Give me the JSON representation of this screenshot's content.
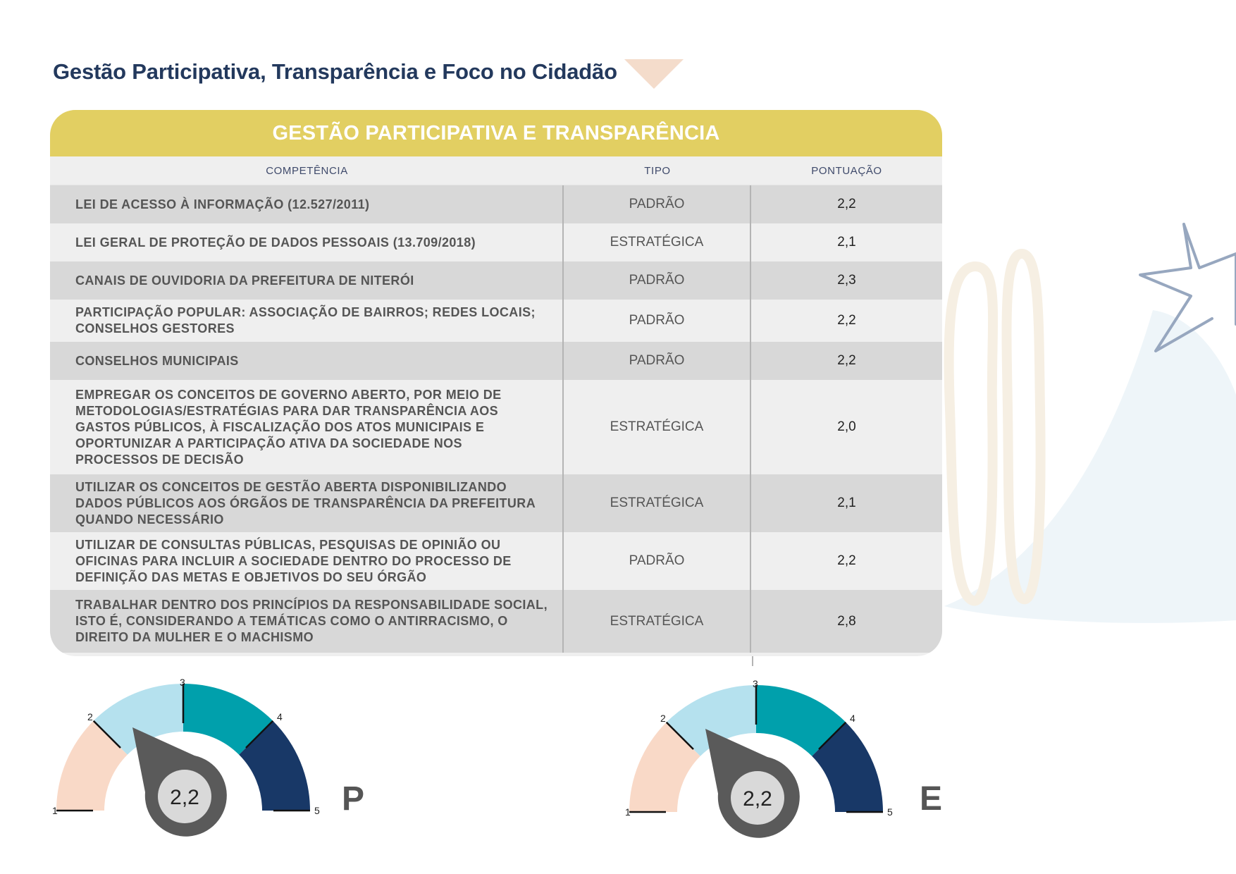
{
  "page_title": "Gestão Participativa, Transparência e Foco no Cidadão",
  "table": {
    "title": "GESTÃO PARTICIPATIVA E TRANSPARÊNCIA",
    "columns": {
      "competencia": "COMPETÊNCIA",
      "tipo": "TIPO",
      "pontuacao": "PONTUAÇÃO"
    },
    "rows": [
      {
        "competencia": "LEI DE ACESSO À INFORMAÇÃO (12.527/2011)",
        "tipo": "PADRÃO",
        "pontuacao": "2,2"
      },
      {
        "competencia": "LEI GERAL DE PROTEÇÃO DE DADOS PESSOAIS (13.709/2018)",
        "tipo": "ESTRATÉGICA",
        "pontuacao": "2,1"
      },
      {
        "competencia": "CANAIS DE OUVIDORIA DA PREFEITURA DE NITERÓI",
        "tipo": "PADRÃO",
        "pontuacao": "2,3"
      },
      {
        "competencia": "PARTICIPAÇÃO POPULAR: ASSOCIAÇÃO DE BAIRROS; REDES LOCAIS; CONSELHOS GESTORES",
        "tipo": "PADRÃO",
        "pontuacao": "2,2"
      },
      {
        "competencia": "CONSELHOS MUNICIPAIS",
        "tipo": "PADRÃO",
        "pontuacao": "2,2"
      },
      {
        "competencia": "EMPREGAR OS CONCEITOS DE GOVERNO ABERTO, POR MEIO DE METODOLOGIAS/ESTRATÉGIAS PARA DAR TRANSPARÊNCIA AOS GASTOS PÚBLICOS, À FISCALIZAÇÃO DOS ATOS MUNICIPAIS E OPORTUNIZAR A PARTICIPAÇÃO ATIVA DA SOCIEDADE NOS PROCESSOS DE DECISÃO",
        "tipo": "ESTRATÉGICA",
        "pontuacao": "2,0"
      },
      {
        "competencia": "UTILIZAR OS CONCEITOS DE GESTÃO ABERTA DISPONIBILIZANDO DADOS PÚBLICOS AOS ÓRGÃOS DE TRANSPARÊNCIA DA PREFEITURA QUANDO NECESSÁRIO",
        "tipo": "ESTRATÉGICA",
        "pontuacao": "2,1"
      },
      {
        "competencia": "UTILIZAR DE CONSULTAS PÚBLICAS, PESQUISAS DE OPINIÃO OU OFICINAS PARA INCLUIR A SOCIEDADE DENTRO DO PROCESSO DE DEFINIÇÃO DAS METAS E OBJETIVOS DO SEU ÓRGÃO",
        "tipo": "PADRÃO",
        "pontuacao": "2,2"
      },
      {
        "competencia": "TRABALHAR DENTRO DOS PRINCÍPIOS DA RESPONSABILIDADE SOCIAL, ISTO É, CONSIDERANDO A TEMÁTICAS COMO O ANTIRRACISMO, O DIREITO DA MULHER E O MACHISMO",
        "tipo": "ESTRATÉGICA",
        "pontuacao": "2,8"
      }
    ]
  },
  "gauges": [
    {
      "letter": "P",
      "value": 2.2,
      "value_label": "2,2",
      "ticks": [
        "1",
        "2",
        "3",
        "4",
        "5"
      ],
      "min": 1,
      "max": 5
    },
    {
      "letter": "E",
      "value": 2.2,
      "value_label": "2,2",
      "ticks": [
        "1",
        "2",
        "3",
        "4",
        "5"
      ],
      "min": 1,
      "max": 5
    }
  ],
  "colors": {
    "title": "#23395d",
    "header_band": "#e2cf62",
    "accent_triangle": "#f4dccb",
    "seg1": "#f9d9c7",
    "seg2": "#b5e1ee",
    "seg3": "#00a0ac",
    "seg4": "#183867",
    "needle": "#5a5a5a",
    "needle_center": "#d9d9d9"
  }
}
